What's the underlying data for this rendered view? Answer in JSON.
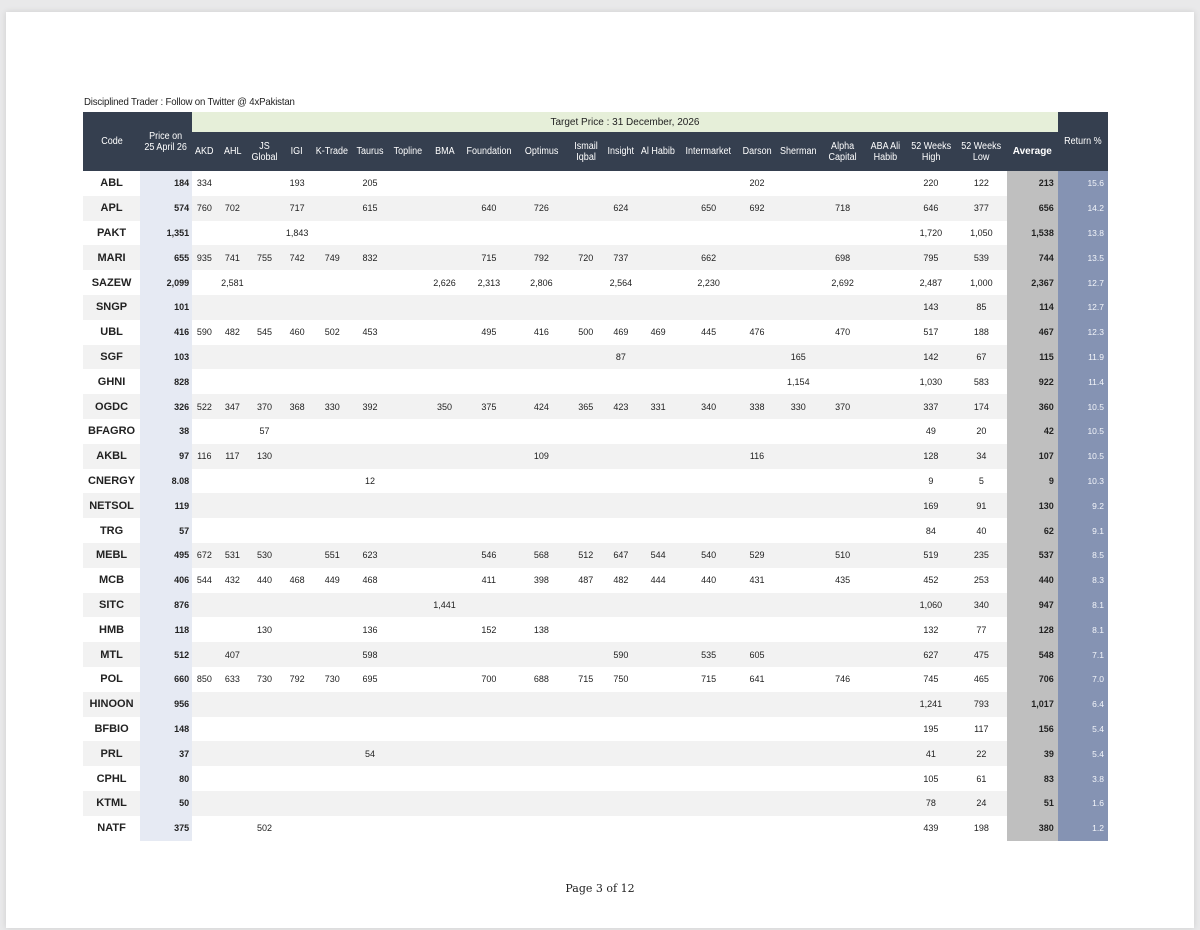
{
  "caption": "Disciplined Trader : Follow on Twitter @ 4xPakistan",
  "header": {
    "code": "Code",
    "price_line1": "Price on",
    "price_line2": "25 April 26",
    "group_title": "Target Price : 31 December, 2026",
    "return": "Return %",
    "average": "Average",
    "columns": [
      [
        "AKD"
      ],
      [
        "AHL"
      ],
      [
        "JS",
        "Global"
      ],
      [
        "IGI"
      ],
      [
        "K-Trade"
      ],
      [
        "Taurus"
      ],
      [
        "Topline"
      ],
      [
        "BMA"
      ],
      [
        "Foundation"
      ],
      [
        "Optimus"
      ],
      [
        "Ismail",
        "Iqbal"
      ],
      [
        "Insight"
      ],
      [
        "Al Habib"
      ],
      [
        "Intermarket"
      ],
      [
        "Darson"
      ],
      [
        "Sherman"
      ],
      [
        "Alpha",
        "Capital"
      ],
      [
        "ABA Ali",
        "Habib"
      ],
      [
        "52 Weeks",
        "High"
      ],
      [
        "52 Weeks",
        "Low"
      ]
    ]
  },
  "rows": [
    {
      "code": "ABL",
      "price": "184",
      "t": [
        "334",
        "",
        "",
        "193",
        "",
        "205",
        "",
        "",
        "",
        "",
        "",
        "",
        "",
        "",
        "202",
        "",
        "",
        "",
        "220",
        "122"
      ],
      "avg": "213",
      "ret": "15.6"
    },
    {
      "code": "APL",
      "price": "574",
      "t": [
        "760",
        "702",
        "",
        "717",
        "",
        "615",
        "",
        "",
        "640",
        "726",
        "",
        "624",
        "",
        "650",
        "692",
        "",
        "718",
        "",
        "646",
        "377"
      ],
      "avg": "656",
      "ret": "14.2"
    },
    {
      "code": "PAKT",
      "price": "1,351",
      "t": [
        "",
        "",
        "",
        "1,843",
        "",
        "",
        "",
        "",
        "",
        "",
        "",
        "",
        "",
        "",
        "",
        "",
        "",
        "",
        "1,720",
        "1,050"
      ],
      "avg": "1,538",
      "ret": "13.8"
    },
    {
      "code": "MARI",
      "price": "655",
      "t": [
        "935",
        "741",
        "755",
        "742",
        "749",
        "832",
        "",
        "",
        "715",
        "792",
        "720",
        "737",
        "",
        "662",
        "",
        "",
        "698",
        "",
        "795",
        "539"
      ],
      "avg": "744",
      "ret": "13.5"
    },
    {
      "code": "SAZEW",
      "price": "2,099",
      "t": [
        "",
        "2,581",
        "",
        "",
        "",
        "",
        "",
        "2,626",
        "2,313",
        "2,806",
        "",
        "2,564",
        "",
        "2,230",
        "",
        "",
        "2,692",
        "",
        "2,487",
        "1,000"
      ],
      "avg": "2,367",
      "ret": "12.7"
    },
    {
      "code": "SNGP",
      "price": "101",
      "t": [
        "",
        "",
        "",
        "",
        "",
        "",
        "",
        "",
        "",
        "",
        "",
        "",
        "",
        "",
        "",
        "",
        "",
        "",
        "143",
        "85"
      ],
      "avg": "114",
      "ret": "12.7"
    },
    {
      "code": "UBL",
      "price": "416",
      "t": [
        "590",
        "482",
        "545",
        "460",
        "502",
        "453",
        "",
        "",
        "495",
        "416",
        "500",
        "469",
        "469",
        "445",
        "476",
        "",
        "470",
        "",
        "517",
        "188"
      ],
      "avg": "467",
      "ret": "12.3"
    },
    {
      "code": "SGF",
      "price": "103",
      "t": [
        "",
        "",
        "",
        "",
        "",
        "",
        "",
        "",
        "",
        "",
        "",
        "87",
        "",
        "",
        "",
        "165",
        "",
        "",
        "142",
        "67"
      ],
      "avg": "115",
      "ret": "11.9"
    },
    {
      "code": "GHNI",
      "price": "828",
      "t": [
        "",
        "",
        "",
        "",
        "",
        "",
        "",
        "",
        "",
        "",
        "",
        "",
        "",
        "",
        "",
        "1,154",
        "",
        "",
        "1,030",
        "583"
      ],
      "avg": "922",
      "ret": "11.4"
    },
    {
      "code": "OGDC",
      "price": "326",
      "t": [
        "522",
        "347",
        "370",
        "368",
        "330",
        "392",
        "",
        "350",
        "375",
        "424",
        "365",
        "423",
        "331",
        "340",
        "338",
        "330",
        "370",
        "",
        "337",
        "174"
      ],
      "avg": "360",
      "ret": "10.5"
    },
    {
      "code": "BFAGRO",
      "price": "38",
      "t": [
        "",
        "",
        "57",
        "",
        "",
        "",
        "",
        "",
        "",
        "",
        "",
        "",
        "",
        "",
        "",
        "",
        "",
        "",
        "49",
        "20"
      ],
      "avg": "42",
      "ret": "10.5"
    },
    {
      "code": "AKBL",
      "price": "97",
      "t": [
        "116",
        "117",
        "130",
        "",
        "",
        "",
        "",
        "",
        "",
        "109",
        "",
        "",
        "",
        "",
        "116",
        "",
        "",
        "",
        "128",
        "34"
      ],
      "avg": "107",
      "ret": "10.5"
    },
    {
      "code": "CNERGY",
      "price": "8.08",
      "t": [
        "",
        "",
        "",
        "",
        "",
        "12",
        "",
        "",
        "",
        "",
        "",
        "",
        "",
        "",
        "",
        "",
        "",
        "",
        "9",
        "5"
      ],
      "avg": "9",
      "ret": "10.3"
    },
    {
      "code": "NETSOL",
      "price": "119",
      "t": [
        "",
        "",
        "",
        "",
        "",
        "",
        "",
        "",
        "",
        "",
        "",
        "",
        "",
        "",
        "",
        "",
        "",
        "",
        "169",
        "91"
      ],
      "avg": "130",
      "ret": "9.2"
    },
    {
      "code": "TRG",
      "price": "57",
      "t": [
        "",
        "",
        "",
        "",
        "",
        "",
        "",
        "",
        "",
        "",
        "",
        "",
        "",
        "",
        "",
        "",
        "",
        "",
        "84",
        "40"
      ],
      "avg": "62",
      "ret": "9.1"
    },
    {
      "code": "MEBL",
      "price": "495",
      "t": [
        "672",
        "531",
        "530",
        "",
        "551",
        "623",
        "",
        "",
        "546",
        "568",
        "512",
        "647",
        "544",
        "540",
        "529",
        "",
        "510",
        "",
        "519",
        "235"
      ],
      "avg": "537",
      "ret": "8.5"
    },
    {
      "code": "MCB",
      "price": "406",
      "t": [
        "544",
        "432",
        "440",
        "468",
        "449",
        "468",
        "",
        "",
        "411",
        "398",
        "487",
        "482",
        "444",
        "440",
        "431",
        "",
        "435",
        "",
        "452",
        "253"
      ],
      "avg": "440",
      "ret": "8.3"
    },
    {
      "code": "SITC",
      "price": "876",
      "t": [
        "",
        "",
        "",
        "",
        "",
        "",
        "",
        "1,441",
        "",
        "",
        "",
        "",
        "",
        "",
        "",
        "",
        "",
        "",
        "1,060",
        "340"
      ],
      "avg": "947",
      "ret": "8.1"
    },
    {
      "code": "HMB",
      "price": "118",
      "t": [
        "",
        "",
        "130",
        "",
        "",
        "136",
        "",
        "",
        "152",
        "138",
        "",
        "",
        "",
        "",
        "",
        "",
        "",
        "",
        "132",
        "77"
      ],
      "avg": "128",
      "ret": "8.1"
    },
    {
      "code": "MTL",
      "price": "512",
      "t": [
        "",
        "407",
        "",
        "",
        "",
        "598",
        "",
        "",
        "",
        "",
        "",
        "590",
        "",
        "535",
        "605",
        "",
        "",
        "",
        "627",
        "475"
      ],
      "avg": "548",
      "ret": "7.1"
    },
    {
      "code": "POL",
      "price": "660",
      "t": [
        "850",
        "633",
        "730",
        "792",
        "730",
        "695",
        "",
        "",
        "700",
        "688",
        "715",
        "750",
        "",
        "715",
        "641",
        "",
        "746",
        "",
        "745",
        "465"
      ],
      "avg": "706",
      "ret": "7.0"
    },
    {
      "code": "HINOON",
      "price": "956",
      "t": [
        "",
        "",
        "",
        "",
        "",
        "",
        "",
        "",
        "",
        "",
        "",
        "",
        "",
        "",
        "",
        "",
        "",
        "",
        "1,241",
        "793"
      ],
      "avg": "1,017",
      "ret": "6.4"
    },
    {
      "code": "BFBIO",
      "price": "148",
      "t": [
        "",
        "",
        "",
        "",
        "",
        "",
        "",
        "",
        "",
        "",
        "",
        "",
        "",
        "",
        "",
        "",
        "",
        "",
        "195",
        "117"
      ],
      "avg": "156",
      "ret": "5.4"
    },
    {
      "code": "PRL",
      "price": "37",
      "t": [
        "",
        "",
        "",
        "",
        "",
        "54",
        "",
        "",
        "",
        "",
        "",
        "",
        "",
        "",
        "",
        "",
        "",
        "",
        "41",
        "22"
      ],
      "avg": "39",
      "ret": "5.4"
    },
    {
      "code": "CPHL",
      "price": "80",
      "t": [
        "",
        "",
        "",
        "",
        "",
        "",
        "",
        "",
        "",
        "",
        "",
        "",
        "",
        "",
        "",
        "",
        "",
        "",
        "105",
        "61"
      ],
      "avg": "83",
      "ret": "3.8"
    },
    {
      "code": "KTML",
      "price": "50",
      "t": [
        "",
        "",
        "",
        "",
        "",
        "",
        "",
        "",
        "",
        "",
        "",
        "",
        "",
        "",
        "",
        "",
        "",
        "",
        "78",
        "24"
      ],
      "avg": "51",
      "ret": "1.6"
    },
    {
      "code": "NATF",
      "price": "375",
      "t": [
        "",
        "",
        "502",
        "",
        "",
        "",
        "",
        "",
        "",
        "",
        "",
        "",
        "",
        "",
        "",
        "",
        "",
        "",
        "439",
        "198"
      ],
      "avg": "380",
      "ret": "1.2"
    }
  ],
  "footer": "Page 3 of 12"
}
